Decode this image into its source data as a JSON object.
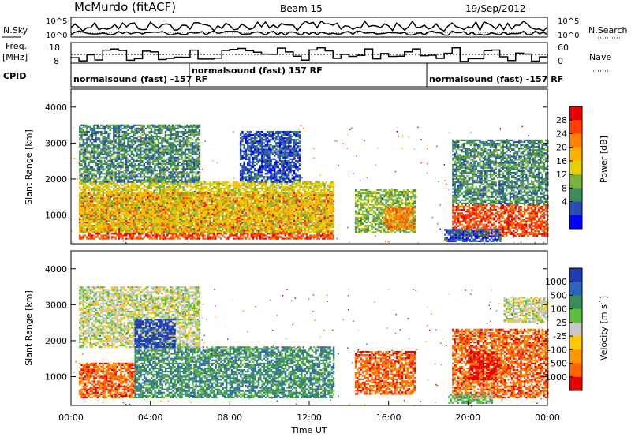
{
  "header": {
    "station": "McMurdo (fitACF)",
    "beam": "Beam 15",
    "date": "19/Sep/2012"
  },
  "strip_panels": {
    "nsky": {
      "label": "N.Sky",
      "right_label": "N.Search",
      "left_ticks": [
        "10^5",
        "10^0"
      ],
      "right_ticks": [
        "10^5",
        "10^0"
      ]
    },
    "freq": {
      "label_line1": "Freq.",
      "label_line2": "[MHz]",
      "left_ticks": [
        "18",
        "8"
      ],
      "right_ticks": [
        "60",
        "0"
      ],
      "right_label": "Nave"
    },
    "cpid": {
      "label": "CPID",
      "segments": [
        {
          "text": "normalsound (fast) -157 RF",
          "start_hour": 0
        },
        {
          "text": "normalsound (fast) 157 RF",
          "start_hour": 6
        },
        {
          "text": "normalsound (fast) -157 RF",
          "start_hour": 18
        }
      ]
    }
  },
  "x_axis": {
    "label": "Time UT",
    "ticks": [
      "00:00",
      "04:00",
      "08:00",
      "12:00",
      "16:00",
      "20:00",
      "00:00"
    ]
  },
  "chart_data": [
    {
      "type": "heatmap",
      "name": "power-panel",
      "ylabel": "Slant Range [km]",
      "yticks": [
        1000,
        2000,
        3000,
        4000
      ],
      "ylim": [
        200,
        4500
      ],
      "xlim": [
        0,
        24
      ],
      "colorbar": {
        "label": "Power [dB]",
        "ticks": [
          "28",
          "24",
          "20",
          "16",
          "12",
          "8",
          "4"
        ],
        "colors": [
          "#e60000",
          "#ff4000",
          "#ff8000",
          "#ffb000",
          "#e8d000",
          "#78b43c",
          "#3c8c5a",
          "#284bb4",
          "#0000ff"
        ]
      },
      "palette": [
        "#0000ff",
        "#284bb4",
        "#3c8c5a",
        "#78b43c",
        "#e8d000",
        "#ffb000",
        "#ff8000",
        "#ff4000",
        "#e60000"
      ],
      "regions": [
        {
          "t0": 0.4,
          "t1": 13.2,
          "r0": 320,
          "r1": 1600,
          "level": 7
        },
        {
          "t0": 0.4,
          "t1": 13.2,
          "r0": 500,
          "r1": 1900,
          "level": 4
        },
        {
          "t0": 0.4,
          "t1": 6.5,
          "r0": 1900,
          "r1": 3500,
          "level": 2
        },
        {
          "t0": 8.5,
          "t1": 11.5,
          "r0": 1900,
          "r1": 3300,
          "level": 1
        },
        {
          "t0": 14.3,
          "t1": 17.3,
          "r0": 500,
          "r1": 1700,
          "level": 3
        },
        {
          "t0": 15.8,
          "t1": 17.3,
          "r0": 600,
          "r1": 1200,
          "level": 6
        },
        {
          "t0": 19.2,
          "t1": 24,
          "r0": 400,
          "r1": 1300,
          "level": 7
        },
        {
          "t0": 19.2,
          "t1": 24,
          "r0": 1300,
          "r1": 3100,
          "level": 2
        },
        {
          "t0": 18.8,
          "t1": 21.6,
          "r0": 250,
          "r1": 600,
          "level": 1
        }
      ]
    },
    {
      "type": "heatmap",
      "name": "velocity-panel",
      "ylabel": "Slant Range [km]",
      "yticks": [
        1000,
        2000,
        3000,
        4000
      ],
      "ylim": [
        200,
        4500
      ],
      "xlim": [
        0,
        24
      ],
      "colorbar": {
        "label": "Velocity [m s^-1]",
        "ticks": [
          "1000",
          "500",
          "100",
          "25",
          "-25",
          "-100",
          "-500",
          "-1000"
        ],
        "colors": [
          "#1e3cb4",
          "#2d64be",
          "#3c8c5a",
          "#5abe3c",
          "#c8c8c8",
          "#ffc800",
          "#ff9600",
          "#ff6400",
          "#e60000"
        ]
      },
      "palette": [
        "#1e3cb4",
        "#2d64be",
        "#3c8c5a",
        "#5abe3c",
        "#c8c8c8",
        "#ffc800",
        "#ff9600",
        "#ff6400",
        "#e60000"
      ],
      "regions": [
        {
          "t0": 0.4,
          "t1": 3.2,
          "r0": 400,
          "r1": 1350,
          "level": 7
        },
        {
          "t0": 3.2,
          "t1": 13.2,
          "r0": 400,
          "r1": 1800,
          "level": 2
        },
        {
          "t0": 0.4,
          "t1": 6.5,
          "r0": 1800,
          "r1": 3500,
          "level": 4
        },
        {
          "t0": 3.2,
          "t1": 5.2,
          "r0": 1800,
          "r1": 2600,
          "level": 0
        },
        {
          "t0": 14.3,
          "t1": 17.3,
          "r0": 500,
          "r1": 1700,
          "level": 7
        },
        {
          "t0": 19.2,
          "t1": 24,
          "r0": 400,
          "r1": 2300,
          "level": 7
        },
        {
          "t0": 20.0,
          "t1": 21.5,
          "r0": 900,
          "r1": 1700,
          "level": 8
        },
        {
          "t0": 21.8,
          "t1": 24,
          "r0": 2500,
          "r1": 3200,
          "level": 4
        },
        {
          "t0": 19.0,
          "t1": 21.2,
          "r0": 250,
          "r1": 500,
          "level": 3
        }
      ]
    }
  ]
}
